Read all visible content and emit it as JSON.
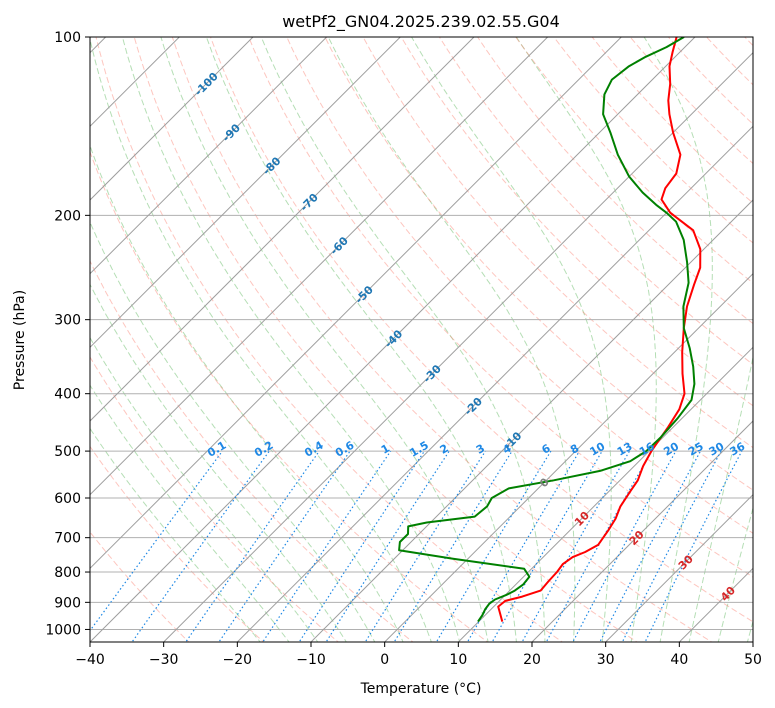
{
  "chart_data": {
    "type": "line",
    "title": "wetPf2_GN04.2025.239.02.55.G04",
    "xlabel": "Temperature (°C)",
    "ylabel": "Pressure (hPa)",
    "xlim": [
      -40,
      50
    ],
    "ylim": [
      1050,
      100
    ],
    "y_scale": "log",
    "grid": true,
    "x_ticks": [
      "−40",
      "−30",
      "−20",
      "−10",
      "0",
      "10",
      "20",
      "30",
      "40",
      "50"
    ],
    "y_ticks": [
      "100",
      "200",
      "300",
      "400",
      "500",
      "600",
      "700",
      "800",
      "900",
      "1000"
    ],
    "series": [
      {
        "color": "#ff0000",
        "points": [
          [
            13.2,
            970
          ],
          [
            11.8,
            940
          ],
          [
            10.6,
            915
          ],
          [
            10.8,
            895
          ],
          [
            12.5,
            880
          ],
          [
            14.2,
            860
          ],
          [
            14.0,
            830
          ],
          [
            13.9,
            800
          ],
          [
            13.6,
            775
          ],
          [
            14.0,
            755
          ],
          [
            15.0,
            740
          ],
          [
            15.8,
            720
          ],
          [
            15.2,
            680
          ],
          [
            14.6,
            650
          ],
          [
            13.6,
            620
          ],
          [
            12.9,
            585
          ],
          [
            12.4,
            560
          ],
          [
            11.2,
            530
          ],
          [
            10.3,
            500
          ],
          [
            9.3,
            455
          ],
          [
            8.4,
            425
          ],
          [
            7.0,
            400
          ],
          [
            4.0,
            370
          ],
          [
            1.0,
            340
          ],
          [
            -2.0,
            310
          ],
          [
            -4.5,
            285
          ],
          [
            -6.5,
            262
          ],
          [
            -8.0,
            245
          ],
          [
            -10.5,
            228
          ],
          [
            -14.0,
            212
          ],
          [
            -19.5,
            198
          ],
          [
            -22.5,
            188
          ],
          [
            -23.5,
            180
          ],
          [
            -24.0,
            170
          ],
          [
            -26.0,
            158
          ],
          [
            -30.0,
            145
          ],
          [
            -33.0,
            135
          ],
          [
            -35.0,
            128
          ],
          [
            -37.0,
            120
          ],
          [
            -39.5,
            112
          ],
          [
            -41.0,
            106
          ],
          [
            -42.5,
            100
          ]
        ]
      },
      {
        "color": "#008000",
        "points": [
          [
            9.9,
            970
          ],
          [
            9.6,
            945
          ],
          [
            9.2,
            925
          ],
          [
            9.0,
            905
          ],
          [
            9.2,
            890
          ],
          [
            10.1,
            875
          ],
          [
            10.7,
            860
          ],
          [
            11.0,
            840
          ],
          [
            10.8,
            815
          ],
          [
            9.0,
            790
          ],
          [
            -2.0,
            760
          ],
          [
            -10.5,
            735
          ],
          [
            -11.5,
            712
          ],
          [
            -11.5,
            690
          ],
          [
            -12.5,
            670
          ],
          [
            -10.5,
            660
          ],
          [
            -4.8,
            645
          ],
          [
            -4.5,
            620
          ],
          [
            -5.0,
            600
          ],
          [
            -4.0,
            578
          ],
          [
            1.0,
            560
          ],
          [
            6.0,
            540
          ],
          [
            8.8,
            520
          ],
          [
            9.6,
            500
          ],
          [
            9.7,
            475
          ],
          [
            9.4,
            440
          ],
          [
            8.8,
            410
          ],
          [
            7.0,
            385
          ],
          [
            4.5,
            360
          ],
          [
            1.5,
            335
          ],
          [
            -2.0,
            310
          ],
          [
            -5.0,
            285
          ],
          [
            -7.5,
            260
          ],
          [
            -10.5,
            240
          ],
          [
            -14.0,
            220
          ],
          [
            -17.5,
            205
          ],
          [
            -20.0,
            198
          ],
          [
            -22.5,
            192
          ],
          [
            -26.0,
            183
          ],
          [
            -30.0,
            172
          ],
          [
            -34.5,
            158
          ],
          [
            -38.5,
            145
          ],
          [
            -42.0,
            135
          ],
          [
            -44.5,
            125
          ],
          [
            -45.5,
            118
          ],
          [
            -45.0,
            112
          ],
          [
            -44.0,
            108
          ],
          [
            -42.5,
            104
          ],
          [
            -41.5,
            100
          ]
        ]
      }
    ],
    "isotherm_labels": [
      "-100",
      "-90",
      "-80",
      "-70",
      "-60",
      "-50",
      "-40",
      "-30",
      "-20",
      "-10",
      "0",
      "10",
      "20",
      "30",
      "40"
    ],
    "mixing_ratio_labels": [
      "0.1",
      "0.2",
      "0.4",
      "0.6",
      "1",
      "1.5",
      "2",
      "3",
      "4",
      "6",
      "8",
      "10",
      "13",
      "16",
      "20",
      "25",
      "30",
      "36"
    ],
    "colors": {
      "temperature": "#ff0000",
      "dewpoint": "#008000",
      "isotherm_label": "#1f77b4",
      "warm_label": "#d62728",
      "zero_label": "#7f7f7f",
      "mixing_ratio": "#1e88e5",
      "dry_adiabat": "#fa8072",
      "moist_adiabat": "#2ca02c",
      "skewed_isotherm": "#808080"
    }
  }
}
